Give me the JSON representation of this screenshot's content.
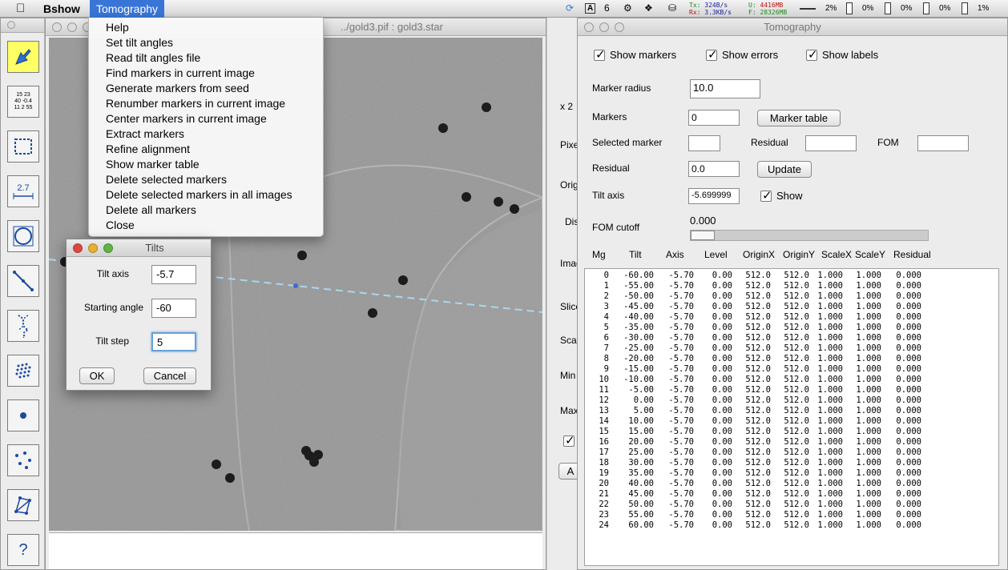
{
  "menubar": {
    "apple_icon": "apple-icon",
    "app_name": "Bshow",
    "open_menu": "Tomography",
    "status": {
      "badge_value": "6",
      "tx_label": "Tx:",
      "tx_value": "324B/s",
      "rx_label": "Rx:",
      "rx_value": "3.3KB/s",
      "u_label": "U:",
      "u_value": "4416MB",
      "f_label": "F:",
      "f_value": "28326MB",
      "cpu": [
        "2%",
        "0%",
        "0%",
        "0%",
        "1%"
      ]
    }
  },
  "tomography_menu": {
    "items": [
      "Help",
      "Set tilt angles",
      "Read tilt angles file",
      "Find markers in current image",
      "Generate markers from seed",
      "Renumber markers in current image",
      "Center markers in current image",
      "Extract markers",
      "Refine alignment",
      "Show marker table",
      "Delete selected markers",
      "Delete selected markers in all images",
      "Delete all markers",
      "Close"
    ]
  },
  "image_window": {
    "title": "../gold3.pif : gold3.star"
  },
  "side_panel": {
    "labels": [
      "x 2",
      "Pixe",
      "Orig",
      "Dis",
      "Imag",
      "Slice",
      "Scal",
      "Min",
      "Max",
      "A"
    ]
  },
  "tilts_dialog": {
    "title": "Tilts",
    "tilt_axis_label": "Tilt axis",
    "tilt_axis_value": "-5.7",
    "starting_angle_label": "Starting angle",
    "starting_angle_value": "-60",
    "tilt_step_label": "Tilt step",
    "tilt_step_value": "5",
    "ok_label": "OK",
    "cancel_label": "Cancel"
  },
  "tomography_window": {
    "title": "Tomography",
    "show_markers": "Show markers",
    "show_errors": "Show errors",
    "show_labels": "Show labels",
    "marker_radius_label": "Marker radius",
    "marker_radius_value": "10.0",
    "markers_label": "Markers",
    "markers_value": "0",
    "marker_table_button": "Marker table",
    "selected_marker_label": "Selected marker",
    "residual_label_inline": "Residual",
    "fom_label": "FOM",
    "residual_label": "Residual",
    "residual_value": "0.0",
    "update_button": "Update",
    "tilt_axis_label": "Tilt axis",
    "tilt_axis_value": "-5.699999",
    "show_label": "Show",
    "fom_cutoff_label": "FOM cutoff",
    "fom_cutoff_value": "0.000",
    "fom_cutoff_fraction": 0.0,
    "table_headers": [
      "Mg",
      "Tilt",
      "Axis",
      "Level",
      "OriginX",
      "OriginY",
      "ScaleX",
      "ScaleY",
      "Residual"
    ],
    "table_rows": [
      [
        "0",
        "-60.00",
        "-5.70",
        "0.00",
        "512.0",
        "512.0",
        "1.000",
        "1.000",
        "0.000"
      ],
      [
        "1",
        "-55.00",
        "-5.70",
        "0.00",
        "512.0",
        "512.0",
        "1.000",
        "1.000",
        "0.000"
      ],
      [
        "2",
        "-50.00",
        "-5.70",
        "0.00",
        "512.0",
        "512.0",
        "1.000",
        "1.000",
        "0.000"
      ],
      [
        "3",
        "-45.00",
        "-5.70",
        "0.00",
        "512.0",
        "512.0",
        "1.000",
        "1.000",
        "0.000"
      ],
      [
        "4",
        "-40.00",
        "-5.70",
        "0.00",
        "512.0",
        "512.0",
        "1.000",
        "1.000",
        "0.000"
      ],
      [
        "5",
        "-35.00",
        "-5.70",
        "0.00",
        "512.0",
        "512.0",
        "1.000",
        "1.000",
        "0.000"
      ],
      [
        "6",
        "-30.00",
        "-5.70",
        "0.00",
        "512.0",
        "512.0",
        "1.000",
        "1.000",
        "0.000"
      ],
      [
        "7",
        "-25.00",
        "-5.70",
        "0.00",
        "512.0",
        "512.0",
        "1.000",
        "1.000",
        "0.000"
      ],
      [
        "8",
        "-20.00",
        "-5.70",
        "0.00",
        "512.0",
        "512.0",
        "1.000",
        "1.000",
        "0.000"
      ],
      [
        "9",
        "-15.00",
        "-5.70",
        "0.00",
        "512.0",
        "512.0",
        "1.000",
        "1.000",
        "0.000"
      ],
      [
        "10",
        "-10.00",
        "-5.70",
        "0.00",
        "512.0",
        "512.0",
        "1.000",
        "1.000",
        "0.000"
      ],
      [
        "11",
        "-5.00",
        "-5.70",
        "0.00",
        "512.0",
        "512.0",
        "1.000",
        "1.000",
        "0.000"
      ],
      [
        "12",
        "0.00",
        "-5.70",
        "0.00",
        "512.0",
        "512.0",
        "1.000",
        "1.000",
        "0.000"
      ],
      [
        "13",
        "5.00",
        "-5.70",
        "0.00",
        "512.0",
        "512.0",
        "1.000",
        "1.000",
        "0.000"
      ],
      [
        "14",
        "10.00",
        "-5.70",
        "0.00",
        "512.0",
        "512.0",
        "1.000",
        "1.000",
        "0.000"
      ],
      [
        "15",
        "15.00",
        "-5.70",
        "0.00",
        "512.0",
        "512.0",
        "1.000",
        "1.000",
        "0.000"
      ],
      [
        "16",
        "20.00",
        "-5.70",
        "0.00",
        "512.0",
        "512.0",
        "1.000",
        "1.000",
        "0.000"
      ],
      [
        "17",
        "25.00",
        "-5.70",
        "0.00",
        "512.0",
        "512.0",
        "1.000",
        "1.000",
        "0.000"
      ],
      [
        "18",
        "30.00",
        "-5.70",
        "0.00",
        "512.0",
        "512.0",
        "1.000",
        "1.000",
        "0.000"
      ],
      [
        "19",
        "35.00",
        "-5.70",
        "0.00",
        "512.0",
        "512.0",
        "1.000",
        "1.000",
        "0.000"
      ],
      [
        "20",
        "40.00",
        "-5.70",
        "0.00",
        "512.0",
        "512.0",
        "1.000",
        "1.000",
        "0.000"
      ],
      [
        "21",
        "45.00",
        "-5.70",
        "0.00",
        "512.0",
        "512.0",
        "1.000",
        "1.000",
        "0.000"
      ],
      [
        "22",
        "50.00",
        "-5.70",
        "0.00",
        "512.0",
        "512.0",
        "1.000",
        "1.000",
        "0.000"
      ],
      [
        "23",
        "55.00",
        "-5.70",
        "0.00",
        "512.0",
        "512.0",
        "1.000",
        "1.000",
        "0.000"
      ],
      [
        "24",
        "60.00",
        "-5.70",
        "0.00",
        "512.0",
        "512.0",
        "1.000",
        "1.000",
        "0.000"
      ]
    ]
  },
  "toolbar": {
    "tools": [
      {
        "icon": "pointer-arrow-icon",
        "active": true
      },
      {
        "icon": "number-table-icon",
        "text": [
          "15 23",
          "40 -0.4",
          "11 2 55"
        ]
      },
      {
        "icon": "select-rectangle-icon"
      },
      {
        "icon": "measure-ruler-icon",
        "text": [
          "2.7"
        ]
      },
      {
        "icon": "circle-select-icon"
      },
      {
        "icon": "line-path-icon"
      },
      {
        "icon": "filament-icon"
      },
      {
        "icon": "dot-grid-icon"
      },
      {
        "icon": "single-marker-icon"
      },
      {
        "icon": "scattered-markers-icon"
      },
      {
        "icon": "polygon-network-icon"
      },
      {
        "icon": "help-question-icon",
        "text": [
          "?"
        ]
      }
    ]
  },
  "colors": {
    "menu_highlight": "#3875d7",
    "tilt_axis_line": "#a8d8ee",
    "active_tool": "#ffff66"
  }
}
